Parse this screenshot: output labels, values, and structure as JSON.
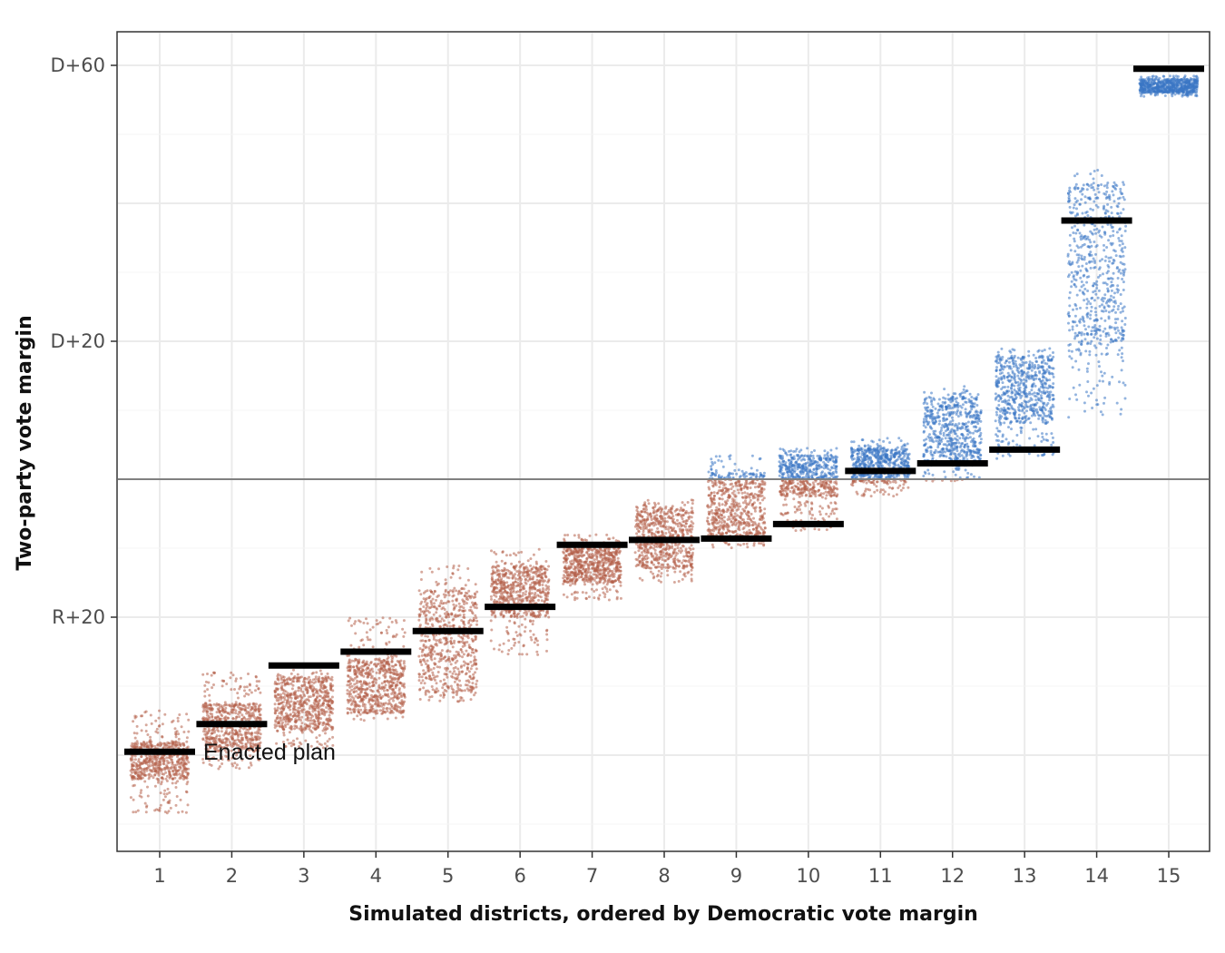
{
  "chart_data": {
    "type": "scatter",
    "xlabel": "Simulated districts, ordered by Democratic vote margin",
    "ylabel": "Two-party vote margin",
    "x_ticks": [
      "1",
      "2",
      "3",
      "4",
      "5",
      "6",
      "7",
      "8",
      "9",
      "10",
      "11",
      "12",
      "13",
      "14",
      "15"
    ],
    "y_ticks": [
      {
        "value": -20,
        "label": "R+20"
      },
      {
        "value": 20,
        "label": "D+20"
      },
      {
        "value": 60,
        "label": "D+60"
      }
    ],
    "ylim": [
      -54,
      65
    ],
    "grid": true,
    "reference_line": 0,
    "colors": {
      "democratic": "#3b76c4",
      "republican": "#b5604a",
      "enacted": "#000000",
      "grid": "#ebebeb",
      "reference": "#808080"
    },
    "series": [
      {
        "name": "Simulated districts",
        "distributions": [
          {
            "district": 1,
            "min": -48.5,
            "max": -33.5,
            "dense_min": -43.5,
            "dense_max": -38
          },
          {
            "district": 2,
            "min": -42,
            "max": -28,
            "dense_min": -39.5,
            "dense_max": -32.5
          },
          {
            "district": 3,
            "min": -39,
            "max": -27.5,
            "dense_min": -36.5,
            "dense_max": -28.5
          },
          {
            "district": 4,
            "min": -35,
            "max": -20,
            "dense_min": -34,
            "dense_max": -26
          },
          {
            "district": 5,
            "min": -32.5,
            "max": -12.5,
            "dense_min": -31,
            "dense_max": -16
          },
          {
            "district": 6,
            "min": -25.5,
            "max": -10,
            "dense_min": -20,
            "dense_max": -12.5
          },
          {
            "district": 7,
            "min": -17.5,
            "max": -8,
            "dense_min": -15,
            "dense_max": -10
          },
          {
            "district": 8,
            "min": -15,
            "max": -3,
            "dense_min": -13,
            "dense_max": -4
          },
          {
            "district": 9,
            "min": -10,
            "max": 3.5,
            "dense_min": -9,
            "dense_max": 1
          },
          {
            "district": 10,
            "min": -7.5,
            "max": 4.5,
            "dense_min": -2.5,
            "dense_max": 3.5
          },
          {
            "district": 11,
            "min": -2.5,
            "max": 6,
            "dense_min": -0.5,
            "dense_max": 4.5
          },
          {
            "district": 12,
            "min": -0.5,
            "max": 13.5,
            "dense_min": 2,
            "dense_max": 12
          },
          {
            "district": 13,
            "min": 3,
            "max": 19,
            "dense_min": 8,
            "dense_max": 18
          },
          {
            "district": 14,
            "min": 8.5,
            "max": 45,
            "dense_min": 18,
            "dense_max": 43
          },
          {
            "district": 15,
            "min": 55.5,
            "max": 58.5,
            "dense_min": 56,
            "dense_max": 58
          }
        ]
      },
      {
        "name": "Enacted plan",
        "values": [
          -39.5,
          -35.5,
          -27,
          -25,
          -22,
          -18.5,
          -9.5,
          -8.8,
          -8.6,
          -6.5,
          1.2,
          2.3,
          4.3,
          37.5,
          59.5
        ]
      }
    ],
    "annotation": "Enacted plan"
  }
}
